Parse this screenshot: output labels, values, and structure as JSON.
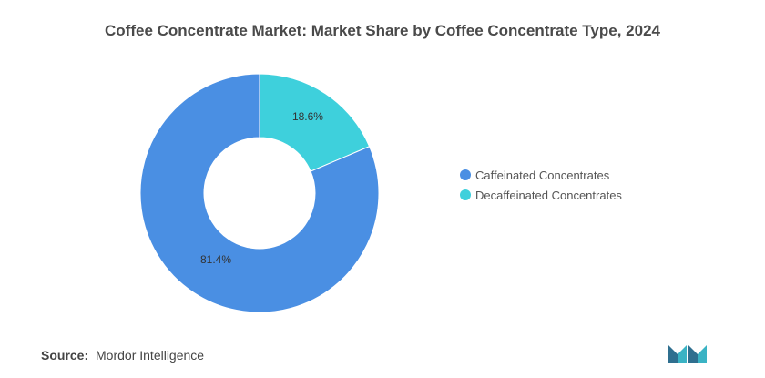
{
  "chart_data": {
    "type": "pie",
    "title": "Coffee Concentrate Market: Market Share by Coffee Concentrate Type, 2024",
    "categories": [
      "Caffeinated Concentrates",
      "Decaffeinated Concentrates"
    ],
    "values": [
      81.4,
      18.6
    ],
    "value_labels": [
      "81.4%",
      "18.6%"
    ],
    "colors": [
      "#4a8fe3",
      "#3ed0dc"
    ],
    "donut": true,
    "legend_position": "right"
  },
  "source": {
    "label": "Source:",
    "text": "Mordor Intelligence"
  },
  "logo": {
    "icon": "mordor-intelligence-logo",
    "color": "#2f6f8f"
  }
}
